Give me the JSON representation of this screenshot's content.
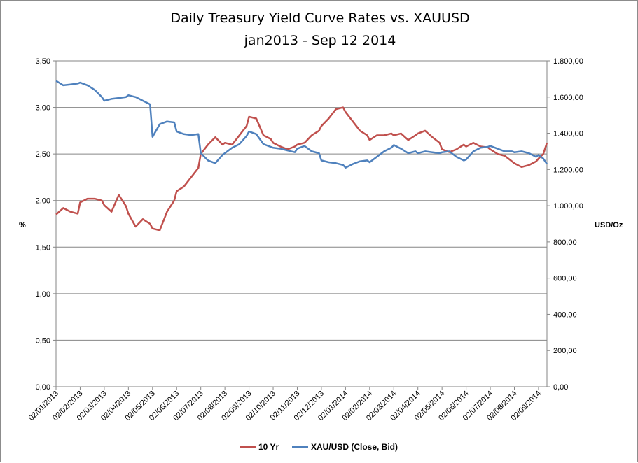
{
  "chart_data": {
    "type": "line",
    "title": "Daily Treasury Yield Curve Rates vs. XAUUSD",
    "subtitle": "jan2013 - Sep 12 2014",
    "ylabel": "%",
    "y2label": "USD/Oz",
    "xlabel": "",
    "ylim": [
      0,
      3.5
    ],
    "y2lim": [
      0,
      1800
    ],
    "grid": true,
    "y_ticks": [
      "0,00",
      "0,50",
      "1,00",
      "1,50",
      "2,00",
      "2,50",
      "3,00",
      "3,50"
    ],
    "y2_ticks": [
      "0,00",
      "200,00",
      "400,00",
      "600,00",
      "800,00",
      "1.000,00",
      "1.200,00",
      "1.400,00",
      "1.600,00",
      "1.800,00"
    ],
    "categories": [
      "02/01/2013",
      "02/02/2013",
      "02/03/2013",
      "02/04/2013",
      "02/05/2013",
      "02/06/2013",
      "02/07/2013",
      "02/08/2013",
      "02/09/2013",
      "02/10/2013",
      "02/11/2013",
      "02/12/2013",
      "02/01/2014",
      "02/02/2014",
      "02/03/2014",
      "02/04/2014",
      "02/05/2014",
      "02/06/2014",
      "02/07/2014",
      "02/08/2014",
      "02/09/2014"
    ],
    "x_range_months": [
      0,
      20.35
    ],
    "series": [
      {
        "name": "10 Yr",
        "axis": "left",
        "color": "#c0504d",
        "x": [
          0,
          0.3,
          0.6,
          0.9,
          1.0,
          1.3,
          1.6,
          1.9,
          2.0,
          2.3,
          2.6,
          2.9,
          3.0,
          3.3,
          3.6,
          3.9,
          4.0,
          4.3,
          4.6,
          4.9,
          5.0,
          5.3,
          5.6,
          5.9,
          6.0,
          6.3,
          6.6,
          6.9,
          7.0,
          7.3,
          7.6,
          7.9,
          8.0,
          8.3,
          8.6,
          8.9,
          9.0,
          9.3,
          9.6,
          9.9,
          10.0,
          10.3,
          10.6,
          10.9,
          11.0,
          11.3,
          11.6,
          11.9,
          12.0,
          12.3,
          12.6,
          12.9,
          13.0,
          13.3,
          13.6,
          13.9,
          14.0,
          14.3,
          14.6,
          14.9,
          15.0,
          15.3,
          15.6,
          15.9,
          16.0,
          16.3,
          16.6,
          16.9,
          17.0,
          17.3,
          17.6,
          17.9,
          18.0,
          18.3,
          18.6,
          18.9,
          19.0,
          19.3,
          19.6,
          19.9,
          20.0,
          20.2,
          20.35
        ],
        "values": [
          1.85,
          1.92,
          1.88,
          1.86,
          1.98,
          2.02,
          2.02,
          2.0,
          1.95,
          1.88,
          2.06,
          1.94,
          1.86,
          1.72,
          1.8,
          1.75,
          1.7,
          1.68,
          1.88,
          2.0,
          2.1,
          2.15,
          2.25,
          2.35,
          2.5,
          2.6,
          2.68,
          2.6,
          2.62,
          2.6,
          2.7,
          2.8,
          2.9,
          2.88,
          2.7,
          2.66,
          2.62,
          2.58,
          2.55,
          2.58,
          2.6,
          2.62,
          2.7,
          2.75,
          2.8,
          2.88,
          2.98,
          3.0,
          2.95,
          2.85,
          2.75,
          2.7,
          2.65,
          2.7,
          2.7,
          2.72,
          2.7,
          2.72,
          2.65,
          2.7,
          2.72,
          2.75,
          2.68,
          2.62,
          2.55,
          2.52,
          2.55,
          2.6,
          2.58,
          2.62,
          2.58,
          2.57,
          2.55,
          2.5,
          2.48,
          2.42,
          2.4,
          2.36,
          2.38,
          2.42,
          2.45,
          2.5,
          2.62
        ]
      },
      {
        "name": "XAU/USD (Close, Bid)",
        "axis": "right",
        "color": "#4f81bd",
        "x": [
          0,
          0.3,
          0.6,
          0.9,
          1.0,
          1.3,
          1.6,
          1.9,
          2.0,
          2.3,
          2.6,
          2.9,
          3.0,
          3.3,
          3.6,
          3.9,
          4.0,
          4.3,
          4.6,
          4.9,
          5.0,
          5.3,
          5.6,
          5.9,
          6.0,
          6.3,
          6.6,
          6.9,
          7.0,
          7.3,
          7.6,
          7.9,
          8.0,
          8.3,
          8.6,
          8.9,
          9.0,
          9.3,
          9.6,
          9.9,
          10.0,
          10.3,
          10.6,
          10.9,
          11.0,
          11.3,
          11.6,
          11.9,
          12.0,
          12.3,
          12.6,
          12.9,
          13.0,
          13.3,
          13.6,
          13.9,
          14.0,
          14.3,
          14.6,
          14.9,
          15.0,
          15.3,
          15.6,
          15.9,
          16.0,
          16.3,
          16.6,
          16.9,
          17.0,
          17.3,
          17.6,
          17.9,
          18.0,
          18.3,
          18.6,
          18.9,
          19.0,
          19.3,
          19.6,
          19.9,
          20.0,
          20.2,
          20.35
        ],
        "values": [
          1690,
          1665,
          1670,
          1675,
          1680,
          1665,
          1640,
          1600,
          1580,
          1590,
          1595,
          1600,
          1610,
          1600,
          1580,
          1560,
          1380,
          1450,
          1465,
          1460,
          1410,
          1395,
          1390,
          1395,
          1290,
          1250,
          1235,
          1280,
          1290,
          1320,
          1340,
          1385,
          1410,
          1395,
          1340,
          1325,
          1320,
          1315,
          1305,
          1295,
          1315,
          1330,
          1300,
          1290,
          1250,
          1240,
          1235,
          1225,
          1210,
          1230,
          1245,
          1250,
          1240,
          1270,
          1300,
          1320,
          1335,
          1315,
          1290,
          1300,
          1290,
          1300,
          1295,
          1290,
          1295,
          1300,
          1270,
          1250,
          1255,
          1300,
          1320,
          1325,
          1330,
          1315,
          1300,
          1300,
          1295,
          1300,
          1290,
          1270,
          1280,
          1260,
          1230
        ]
      }
    ],
    "legend": {
      "placement": "bottom",
      "entries": [
        "10 Yr",
        "XAU/USD (Close, Bid)"
      ]
    }
  }
}
